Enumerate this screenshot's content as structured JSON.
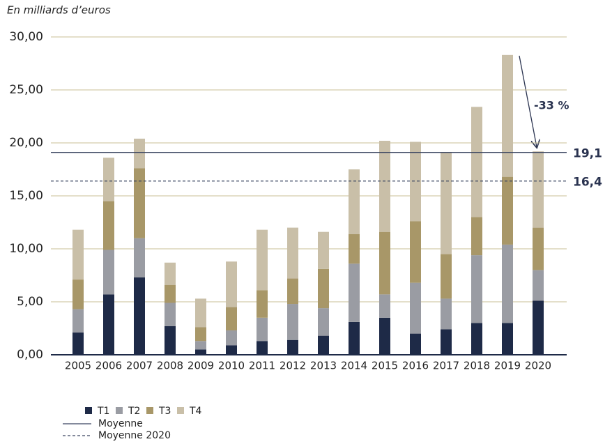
{
  "chart_data": {
    "type": "stacked_bar",
    "ylabel": "En milliards d’euros",
    "categories": [
      "2005",
      "2006",
      "2007",
      "2008",
      "2009",
      "2010",
      "2011",
      "2012",
      "2013",
      "2014",
      "2015",
      "2016",
      "2017",
      "2018",
      "2019",
      "2020"
    ],
    "series": [
      {
        "name": "T1",
        "color": "#1e2a47",
        "values": [
          2.1,
          5.7,
          7.3,
          2.7,
          0.5,
          0.9,
          1.3,
          1.4,
          1.8,
          3.1,
          3.5,
          2.0,
          2.4,
          3.0,
          3.0,
          5.1
        ]
      },
      {
        "name": "T2",
        "color": "#9a9ca3",
        "values": [
          2.2,
          4.2,
          3.7,
          2.2,
          0.8,
          1.4,
          2.2,
          3.4,
          2.6,
          5.5,
          2.2,
          4.8,
          2.9,
          6.4,
          7.4,
          2.9
        ]
      },
      {
        "name": "T3",
        "color": "#a89768",
        "values": [
          2.8,
          4.6,
          6.6,
          1.7,
          1.3,
          2.2,
          2.6,
          2.4,
          3.7,
          2.8,
          5.9,
          5.8,
          4.2,
          3.6,
          6.4,
          4.0
        ]
      },
      {
        "name": "T4",
        "color": "#c9bfa8",
        "values": [
          4.7,
          4.1,
          2.8,
          2.1,
          2.7,
          4.3,
          5.7,
          4.8,
          3.5,
          6.1,
          8.6,
          7.5,
          9.6,
          10.4,
          11.5,
          7.2
        ]
      }
    ],
    "reference_lines": [
      {
        "name": "Moyenne",
        "value": 19.1,
        "label": "19,1",
        "style": "solid",
        "color": "#3a4560"
      },
      {
        "name": "Moyenne 2020",
        "value": 16.4,
        "label": "16,4",
        "style": "dashed",
        "color": "#3a4560"
      }
    ],
    "annotation": "-33 %",
    "ylim": [
      0,
      30
    ],
    "yticks": [
      {
        "value": 0,
        "label": "0,00"
      },
      {
        "value": 5,
        "label": "5,00"
      },
      {
        "value": 10,
        "label": "10,00"
      },
      {
        "value": 15,
        "label": "15,00"
      },
      {
        "value": 20,
        "label": "20,00"
      },
      {
        "value": 25,
        "label": "25,00"
      },
      {
        "value": 30,
        "label": "30,00"
      }
    ],
    "grid": true
  }
}
